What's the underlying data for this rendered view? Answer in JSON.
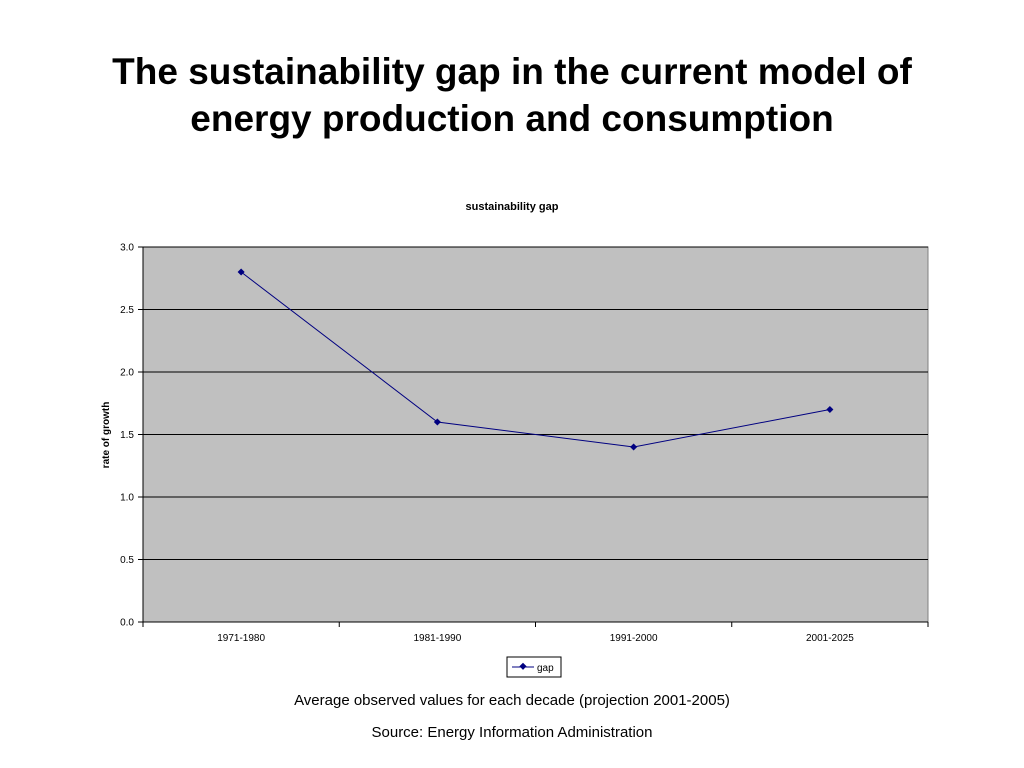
{
  "slide": {
    "title_line1": "The sustainability gap in the current model of",
    "title_line2": "energy production and consumption",
    "caption": "Average observed values for each decade (projection 2001-2005)",
    "source": "Source: Energy Information Administration"
  },
  "chart_data": {
    "type": "line",
    "title": "sustainability gap",
    "xlabel": "",
    "ylabel": "rate of growth",
    "categories": [
      "1971-1980",
      "1981-1990",
      "1991-2000",
      "2001-2025"
    ],
    "series": [
      {
        "name": "gap",
        "values": [
          2.8,
          1.6,
          1.4,
          1.7
        ],
        "color": "#000080"
      }
    ],
    "ylim": [
      0,
      3
    ],
    "yticks": [
      "0.0",
      "0.5",
      "1.0",
      "1.5",
      "2.0",
      "2.5",
      "3.0"
    ],
    "grid": true,
    "legend": "bottom",
    "plot_background": "#c0c0c0"
  }
}
